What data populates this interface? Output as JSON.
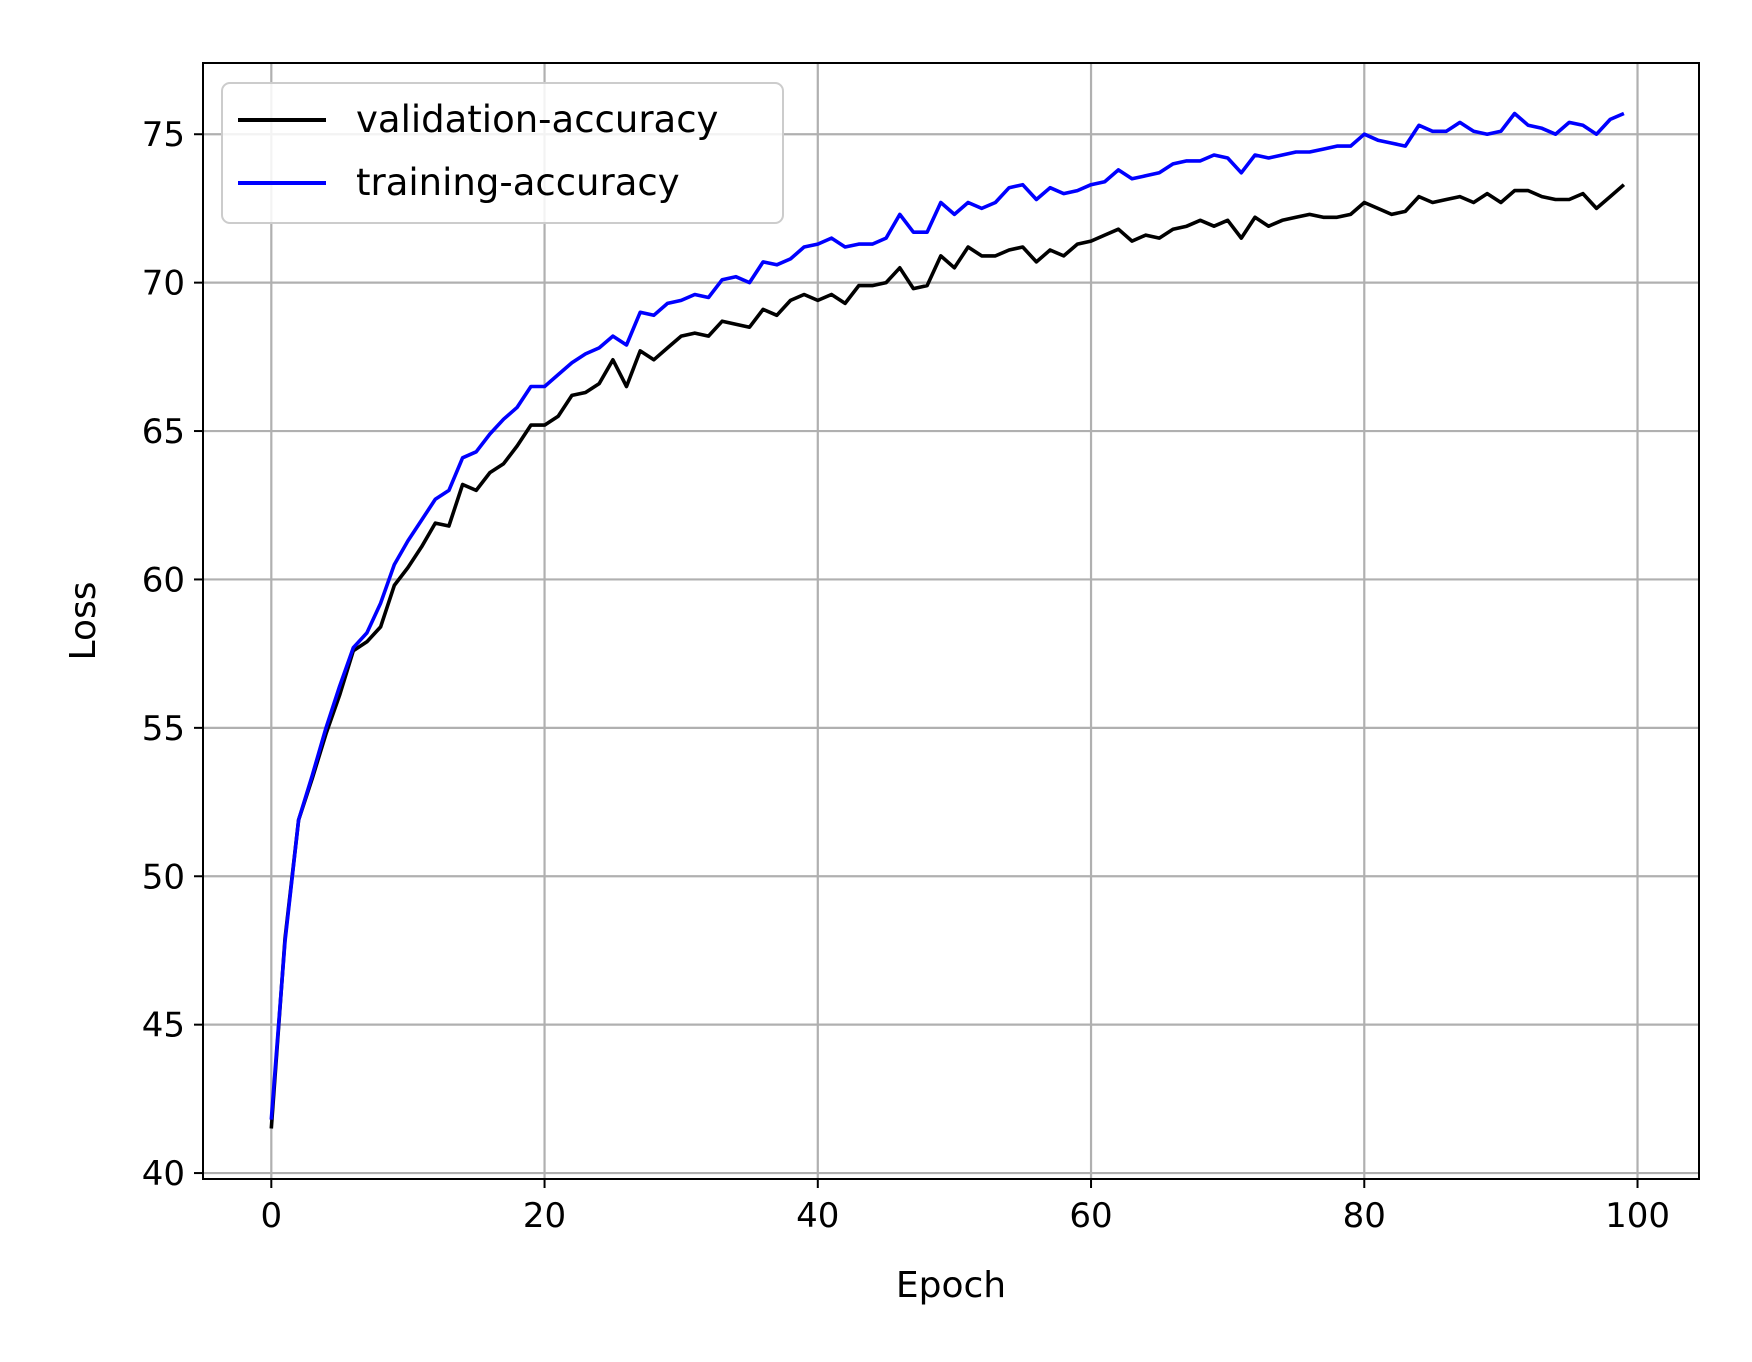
{
  "chart_data": {
    "type": "line",
    "title": "",
    "xlabel": "Epoch",
    "ylabel": "Loss",
    "xlim": [
      -5,
      104.5
    ],
    "ylim": [
      39.8,
      77.4
    ],
    "xticks": [
      0,
      20,
      40,
      60,
      80,
      100
    ],
    "yticks": [
      40,
      45,
      50,
      55,
      60,
      65,
      70,
      75
    ],
    "grid": true,
    "legend_position": "top-left",
    "x": [
      0,
      1,
      2,
      3,
      4,
      5,
      6,
      7,
      8,
      9,
      10,
      11,
      12,
      13,
      14,
      15,
      16,
      17,
      18,
      19,
      20,
      21,
      22,
      23,
      24,
      25,
      26,
      27,
      28,
      29,
      30,
      31,
      32,
      33,
      34,
      35,
      36,
      37,
      38,
      39,
      40,
      41,
      42,
      43,
      44,
      45,
      46,
      47,
      48,
      49,
      50,
      51,
      52,
      53,
      54,
      55,
      56,
      57,
      58,
      59,
      60,
      61,
      62,
      63,
      64,
      65,
      66,
      67,
      68,
      69,
      70,
      71,
      72,
      73,
      74,
      75,
      76,
      77,
      78,
      79,
      80,
      81,
      82,
      83,
      84,
      85,
      86,
      87,
      88,
      89,
      90,
      91,
      92,
      93,
      94,
      95,
      96,
      97,
      98,
      99
    ],
    "series": [
      {
        "name": "validation-accuracy",
        "color": "#000000",
        "values": [
          41.5,
          47.9,
          51.9,
          53.3,
          54.8,
          56.1,
          57.6,
          57.9,
          58.4,
          59.8,
          60.4,
          61.1,
          61.9,
          61.8,
          63.2,
          63.0,
          63.6,
          63.9,
          64.5,
          65.2,
          65.2,
          65.5,
          66.2,
          66.3,
          66.6,
          67.4,
          66.5,
          67.7,
          67.4,
          67.8,
          68.2,
          68.3,
          68.2,
          68.7,
          68.6,
          68.5,
          69.1,
          68.9,
          69.4,
          69.6,
          69.4,
          69.6,
          69.3,
          69.9,
          69.9,
          70.0,
          70.5,
          69.8,
          69.9,
          70.9,
          70.5,
          71.2,
          70.9,
          70.9,
          71.1,
          71.2,
          70.7,
          71.1,
          70.9,
          71.3,
          71.4,
          71.6,
          71.8,
          71.4,
          71.6,
          71.5,
          71.8,
          71.9,
          72.1,
          71.9,
          72.1,
          71.5,
          72.2,
          71.9,
          72.1,
          72.2,
          72.3,
          72.2,
          72.2,
          72.3,
          72.7,
          72.5,
          72.3,
          72.4,
          72.9,
          72.7,
          72.8,
          72.9,
          72.7,
          73.0,
          72.7,
          73.1,
          73.1,
          72.9,
          72.8,
          72.8,
          73.0,
          72.5,
          72.9,
          73.3
        ]
      },
      {
        "name": "training-accuracy",
        "color": "#0000ff",
        "values": [
          41.8,
          47.8,
          51.9,
          53.4,
          55.0,
          56.4,
          57.7,
          58.2,
          59.2,
          60.5,
          61.3,
          62.0,
          62.7,
          63.0,
          64.1,
          64.3,
          64.9,
          65.4,
          65.8,
          66.5,
          66.5,
          66.9,
          67.3,
          67.6,
          67.8,
          68.2,
          67.9,
          69.0,
          68.9,
          69.3,
          69.4,
          69.6,
          69.5,
          70.1,
          70.2,
          70.0,
          70.7,
          70.6,
          70.8,
          71.2,
          71.3,
          71.5,
          71.2,
          71.3,
          71.3,
          71.5,
          72.3,
          71.7,
          71.7,
          72.7,
          72.3,
          72.7,
          72.5,
          72.7,
          73.2,
          73.3,
          72.8,
          73.2,
          73.0,
          73.1,
          73.3,
          73.4,
          73.8,
          73.5,
          73.6,
          73.7,
          74.0,
          74.1,
          74.1,
          74.3,
          74.2,
          73.7,
          74.3,
          74.2,
          74.3,
          74.4,
          74.4,
          74.5,
          74.6,
          74.6,
          75.0,
          74.8,
          74.7,
          74.6,
          75.3,
          75.1,
          75.1,
          75.4,
          75.1,
          75.0,
          75.1,
          75.7,
          75.3,
          75.2,
          75.0,
          75.4,
          75.3,
          75.0,
          75.5,
          75.7
        ]
      }
    ]
  }
}
